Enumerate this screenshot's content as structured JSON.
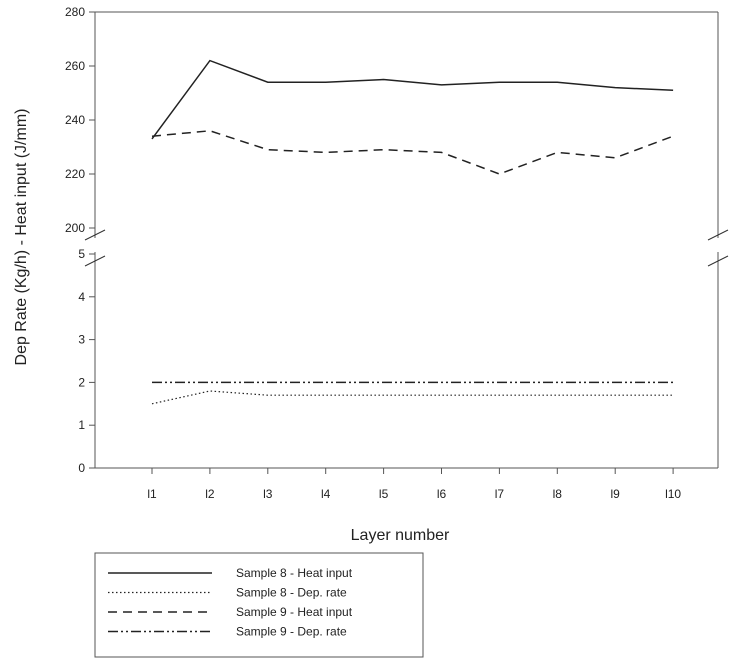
{
  "chart_data": {
    "type": "line",
    "xlabel": "Layer number",
    "ylabel": "Dep Rate (Kg/h) - Heat input (J/mm)",
    "categories": [
      "l1",
      "l2",
      "l3",
      "l4",
      "l5",
      "l6",
      "l7",
      "l8",
      "l9",
      "l10"
    ],
    "axis_break": true,
    "upper_panel": {
      "ylim": [
        200,
        280
      ],
      "yticks": [
        "200",
        "220",
        "240",
        "260",
        "280"
      ]
    },
    "lower_panel": {
      "ylim": [
        0,
        5
      ],
      "yticks": [
        "0",
        "1",
        "2",
        "3",
        "4",
        "5"
      ]
    },
    "grid": false,
    "legend_position": "bottom-left, below plot",
    "series": [
      {
        "name": "Sample 8 - Heat input",
        "panel": "upper",
        "style": "solid",
        "values": [
          233,
          262,
          254,
          254,
          255,
          253,
          254,
          254,
          252,
          251
        ]
      },
      {
        "name": "Sample 8 - Dep. rate",
        "panel": "lower",
        "style": "dotted",
        "values": [
          1.5,
          1.8,
          1.7,
          1.7,
          1.7,
          1.7,
          1.7,
          1.7,
          1.7,
          1.7
        ]
      },
      {
        "name": "Sample 9 - Heat input",
        "panel": "upper",
        "style": "dashed",
        "values": [
          234,
          236,
          229,
          228,
          229,
          228,
          220,
          228,
          226,
          234
        ]
      },
      {
        "name": "Sample 9 - Dep. rate",
        "panel": "lower",
        "style": "dash-dot-dot",
        "values": [
          2.0,
          2.0,
          2.0,
          2.0,
          2.0,
          2.0,
          2.0,
          2.0,
          2.0,
          2.0
        ]
      }
    ]
  }
}
